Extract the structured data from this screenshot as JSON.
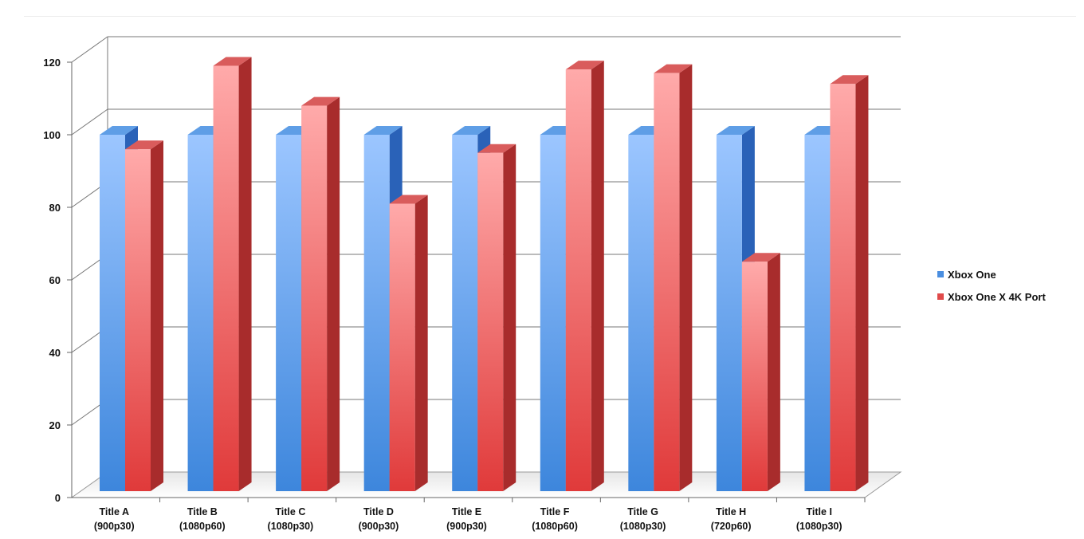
{
  "chart_data": {
    "type": "bar",
    "style": "3d-clustered",
    "categories": [
      [
        "Title A",
        "(900p30)"
      ],
      [
        "Title B",
        "(1080p60)"
      ],
      [
        "Title C",
        "(1080p30)"
      ],
      [
        "Title D",
        "(900p30)"
      ],
      [
        "Title E",
        "(900p30)"
      ],
      [
        "Title F",
        "(1080p60)"
      ],
      [
        "Title G",
        "(1080p30)"
      ],
      [
        "Title H",
        "(720p60)"
      ],
      [
        "Title I",
        "(1080p30)"
      ]
    ],
    "series": [
      {
        "name": "Xbox One",
        "color": "#4a8ee0",
        "values": [
          100,
          100,
          100,
          100,
          100,
          100,
          100,
          100,
          100
        ]
      },
      {
        "name": "Xbox One X 4K Port",
        "color": "#e04a4a",
        "values": [
          96,
          119,
          108,
          81,
          95,
          118,
          117,
          65,
          114
        ]
      }
    ],
    "yticks": [
      0,
      20,
      40,
      60,
      80,
      100,
      120
    ],
    "ylim": [
      0,
      120
    ],
    "grid": true,
    "legend": "right"
  }
}
